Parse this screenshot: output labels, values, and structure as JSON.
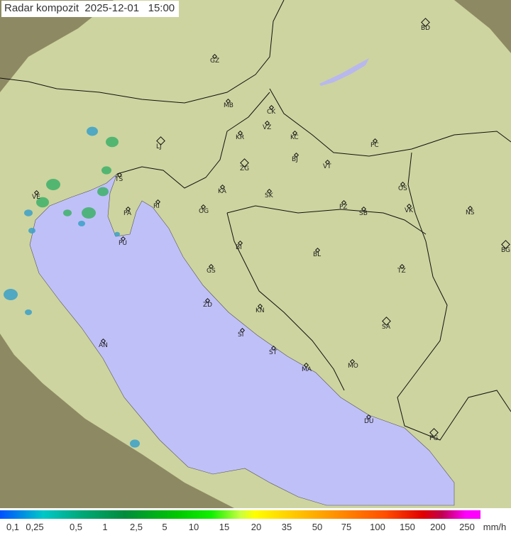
{
  "title": "Radar kompozit  2025-12-01   15:00",
  "legend": {
    "ticks": [
      "0,1",
      "0,25",
      "0,5",
      "1",
      "2,5",
      "5",
      "10",
      "15",
      "20",
      "35",
      "50",
      "75",
      "100",
      "150",
      "200",
      "250"
    ],
    "unit": "mm/h"
  },
  "colors": {
    "sea": "#c0c0f8",
    "coverage": "#cdd8a0",
    "outside": "#8d8a63",
    "rain_light": "#3aa0c8",
    "rain_medium": "#3cb068"
  },
  "cities": [
    {
      "code": "GZ",
      "type": "dot"
    },
    {
      "code": "BD",
      "type": "capital"
    },
    {
      "code": "MB",
      "type": "dot"
    },
    {
      "code": "CK",
      "type": "dot"
    },
    {
      "code": "VZ",
      "type": "dot"
    },
    {
      "code": "KR",
      "type": "dot"
    },
    {
      "code": "KC",
      "type": "dot"
    },
    {
      "code": "LJ",
      "type": "capital"
    },
    {
      "code": "PC",
      "type": "dot"
    },
    {
      "code": "TS",
      "type": "dot"
    },
    {
      "code": "ZG",
      "type": "capital"
    },
    {
      "code": "BJ",
      "type": "dot"
    },
    {
      "code": "VT",
      "type": "dot"
    },
    {
      "code": "OS",
      "type": "dot"
    },
    {
      "code": "VE",
      "type": "dot"
    },
    {
      "code": "RI",
      "type": "dot"
    },
    {
      "code": "KA",
      "type": "dot"
    },
    {
      "code": "SK",
      "type": "dot"
    },
    {
      "code": "PA",
      "type": "dot"
    },
    {
      "code": "OG",
      "type": "dot"
    },
    {
      "code": "PZ",
      "type": "dot"
    },
    {
      "code": "SB",
      "type": "dot"
    },
    {
      "code": "VK",
      "type": "dot"
    },
    {
      "code": "NS",
      "type": "dot"
    },
    {
      "code": "PU",
      "type": "dot"
    },
    {
      "code": "BI",
      "type": "dot"
    },
    {
      "code": "BL",
      "type": "dot"
    },
    {
      "code": "BG",
      "type": "capital"
    },
    {
      "code": "TZ",
      "type": "dot"
    },
    {
      "code": "GS",
      "type": "dot"
    },
    {
      "code": "ZD",
      "type": "dot"
    },
    {
      "code": "KN",
      "type": "dot"
    },
    {
      "code": "SA",
      "type": "capital"
    },
    {
      "code": "SI",
      "type": "dot"
    },
    {
      "code": "AN",
      "type": "dot"
    },
    {
      "code": "ST",
      "type": "dot"
    },
    {
      "code": "MA",
      "type": "dot"
    },
    {
      "code": "MO",
      "type": "dot"
    },
    {
      "code": "DU",
      "type": "dot"
    },
    {
      "code": "PG",
      "type": "capital"
    }
  ]
}
